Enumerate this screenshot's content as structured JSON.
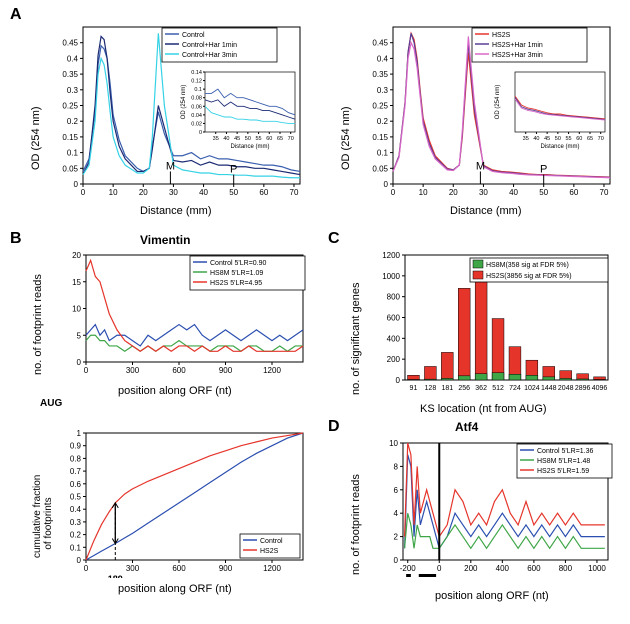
{
  "labels": {
    "A": "A",
    "B": "B",
    "C": "C",
    "D": "D",
    "AUG": "AUG"
  },
  "panelA_left": {
    "type": "line",
    "xlabel": "Distance (mm)",
    "ylabel": "OD (254 nm)",
    "xlim": [
      0,
      72
    ],
    "ylim": [
      0,
      0.5
    ],
    "xticks": [
      0,
      10,
      20,
      30,
      40,
      50,
      60,
      70
    ],
    "yticks": [
      0,
      0.05,
      0.1,
      0.15,
      0.2,
      0.25,
      0.3,
      0.35,
      0.4,
      0.45
    ],
    "M_label": "M",
    "P_label": "P",
    "M_pos": 29,
    "P_pos": 50,
    "series": [
      {
        "name": "Control",
        "color": "#3a5fae",
        "x": [
          0,
          2,
          4,
          5,
          6,
          7,
          8,
          9,
          10,
          12,
          14,
          18,
          20,
          22,
          23,
          25,
          27,
          30,
          33,
          36,
          39,
          42,
          45,
          48,
          51,
          54,
          57,
          60,
          63,
          66,
          69,
          72
        ],
        "y": [
          0.04,
          0.08,
          0.23,
          0.38,
          0.44,
          0.43,
          0.4,
          0.32,
          0.22,
          0.14,
          0.09,
          0.05,
          0.04,
          0.05,
          0.12,
          0.23,
          0.16,
          0.09,
          0.09,
          0.1,
          0.08,
          0.09,
          0.08,
          0.08,
          0.075,
          0.07,
          0.065,
          0.06,
          0.06,
          0.055,
          0.045,
          0.04
        ]
      },
      {
        "name": "Control+Har 1min",
        "color": "#1b2a73",
        "x": [
          0,
          2,
          4,
          5,
          6,
          7,
          8,
          9,
          10,
          12,
          14,
          18,
          20,
          22,
          23,
          25,
          27,
          30,
          33,
          36,
          39,
          42,
          45,
          48,
          51,
          54,
          57,
          60,
          63,
          66,
          69,
          72
        ],
        "y": [
          0.03,
          0.07,
          0.25,
          0.41,
          0.47,
          0.46,
          0.4,
          0.29,
          0.2,
          0.12,
          0.08,
          0.04,
          0.04,
          0.05,
          0.11,
          0.25,
          0.18,
          0.075,
          0.07,
          0.075,
          0.06,
          0.07,
          0.06,
          0.06,
          0.055,
          0.055,
          0.05,
          0.05,
          0.045,
          0.04,
          0.035,
          0.03
        ]
      },
      {
        "name": "Control+Har 3min",
        "color": "#35d2e6",
        "x": [
          0,
          2,
          4,
          5,
          6,
          7,
          8,
          9,
          10,
          12,
          14,
          18,
          20,
          22,
          23,
          25,
          27,
          30,
          33,
          36,
          39,
          42,
          45,
          48,
          51,
          54,
          57,
          60,
          63,
          66,
          69,
          72
        ],
        "y": [
          0.03,
          0.06,
          0.2,
          0.35,
          0.4,
          0.38,
          0.32,
          0.23,
          0.15,
          0.09,
          0.06,
          0.035,
          0.035,
          0.05,
          0.15,
          0.48,
          0.25,
          0.06,
          0.045,
          0.04,
          0.035,
          0.035,
          0.03,
          0.03,
          0.028,
          0.028,
          0.025,
          0.025,
          0.025,
          0.022,
          0.02,
          0.02
        ]
      }
    ],
    "inset": {
      "xlim": [
        30,
        72
      ],
      "ylim": [
        0,
        0.14
      ],
      "xticks": [
        35,
        40,
        45,
        50,
        55,
        60,
        65,
        70
      ],
      "yticks": [
        0,
        0.02,
        0.04,
        0.06,
        0.08,
        0.1,
        0.12,
        0.14
      ]
    }
  },
  "panelA_right": {
    "type": "line",
    "xlabel": "Distance (mm)",
    "ylabel": "OD (254 nm)",
    "xlim": [
      0,
      72
    ],
    "ylim": [
      0,
      0.5
    ],
    "xticks": [
      0,
      10,
      20,
      30,
      40,
      50,
      60,
      70
    ],
    "yticks": [
      0,
      0.05,
      0.1,
      0.15,
      0.2,
      0.25,
      0.3,
      0.35,
      0.4,
      0.45
    ],
    "M_label": "M",
    "P_label": "P",
    "M_pos": 29,
    "P_pos": 50,
    "series": [
      {
        "name": "HS2S",
        "color": "#e5352b",
        "x": [
          0,
          2,
          4,
          5,
          6,
          7,
          8,
          9,
          10,
          12,
          14,
          18,
          20,
          22,
          23,
          25,
          27,
          30,
          33,
          36,
          39,
          42,
          45,
          48,
          51,
          54,
          57,
          60,
          63,
          66,
          69,
          72
        ],
        "y": [
          0.04,
          0.09,
          0.26,
          0.42,
          0.48,
          0.46,
          0.4,
          0.3,
          0.21,
          0.14,
          0.09,
          0.05,
          0.045,
          0.06,
          0.15,
          0.42,
          0.22,
          0.06,
          0.045,
          0.04,
          0.038,
          0.035,
          0.032,
          0.03,
          0.03,
          0.028,
          0.027,
          0.026,
          0.025,
          0.024,
          0.023,
          0.022
        ]
      },
      {
        "name": "HS2S+Har 1min",
        "color": "#5a3f96",
        "x": [
          0,
          2,
          4,
          5,
          6,
          7,
          8,
          9,
          10,
          12,
          14,
          18,
          20,
          22,
          23,
          25,
          27,
          30,
          33,
          36,
          39,
          42,
          45,
          48,
          51,
          54,
          57,
          60,
          63,
          66,
          69,
          72
        ],
        "y": [
          0.04,
          0.09,
          0.26,
          0.42,
          0.48,
          0.45,
          0.39,
          0.29,
          0.2,
          0.13,
          0.085,
          0.048,
          0.045,
          0.06,
          0.16,
          0.45,
          0.24,
          0.058,
          0.042,
          0.038,
          0.036,
          0.033,
          0.03,
          0.029,
          0.028,
          0.027,
          0.026,
          0.025,
          0.024,
          0.023,
          0.022,
          0.021
        ]
      },
      {
        "name": "HS2S+Har 3min",
        "color": "#d967c8",
        "x": [
          0,
          2,
          4,
          5,
          6,
          7,
          8,
          9,
          10,
          12,
          14,
          18,
          20,
          22,
          23,
          25,
          27,
          30,
          33,
          36,
          39,
          42,
          45,
          48,
          51,
          54,
          57,
          60,
          63,
          66,
          69,
          72
        ],
        "y": [
          0.04,
          0.085,
          0.25,
          0.4,
          0.45,
          0.43,
          0.37,
          0.28,
          0.19,
          0.12,
          0.08,
          0.045,
          0.043,
          0.06,
          0.17,
          0.47,
          0.26,
          0.055,
          0.04,
          0.036,
          0.034,
          0.031,
          0.029,
          0.028,
          0.027,
          0.026,
          0.025,
          0.024,
          0.023,
          0.022,
          0.021,
          0.02
        ]
      }
    ],
    "inset": {
      "xlim": [
        30,
        72
      ],
      "ylim": [
        0,
        0.1
      ],
      "xticks": [
        35,
        40,
        45,
        50,
        55,
        60,
        65,
        70
      ]
    }
  },
  "panelB_top": {
    "type": "line",
    "title": "Vimentin",
    "xlabel": "position along ORF (nt)",
    "ylabel": "no. of footprint reads",
    "xlim": [
      0,
      1400
    ],
    "ylim": [
      0,
      20
    ],
    "xticks": [
      0,
      300,
      600,
      900,
      1200
    ],
    "yticks": [
      0,
      5,
      10,
      15,
      20
    ],
    "legend_title": "",
    "series": [
      {
        "name": "Control  5'LR=0.90",
        "color": "#2b4fb0",
        "x": [
          0,
          30,
          60,
          90,
          120,
          150,
          200,
          250,
          300,
          350,
          400,
          450,
          500,
          550,
          600,
          650,
          700,
          750,
          800,
          850,
          900,
          950,
          1000,
          1050,
          1100,
          1150,
          1200,
          1250,
          1300,
          1350,
          1400
        ],
        "y": [
          5,
          6,
          7,
          5,
          6,
          4,
          5,
          5,
          4,
          3,
          5,
          4,
          5,
          6,
          7,
          6,
          7,
          5,
          4,
          5,
          6,
          5,
          4,
          5,
          6,
          5,
          4,
          5,
          4,
          5,
          6
        ]
      },
      {
        "name": "HS8M    5'LR=1.09",
        "color": "#3fa648",
        "x": [
          0,
          30,
          60,
          90,
          120,
          150,
          200,
          250,
          300,
          350,
          400,
          450,
          500,
          550,
          600,
          650,
          700,
          750,
          800,
          850,
          900,
          950,
          1000,
          1050,
          1100,
          1150,
          1200,
          1250,
          1300,
          1350,
          1400
        ],
        "y": [
          4,
          5,
          5,
          4,
          4,
          3,
          3,
          2,
          3,
          2,
          3,
          2,
          3,
          3,
          4,
          3,
          3,
          3,
          2,
          3,
          3,
          3,
          2,
          3,
          3,
          2,
          2,
          3,
          2,
          3,
          3
        ]
      },
      {
        "name": "HS2S    5'LR=4.95",
        "color": "#e5352b",
        "x": [
          0,
          30,
          60,
          90,
          120,
          150,
          200,
          250,
          300,
          350,
          400,
          450,
          500,
          550,
          600,
          650,
          700,
          750,
          800,
          850,
          900,
          950,
          1000,
          1050,
          1100,
          1150,
          1200,
          1250,
          1300,
          1350,
          1400
        ],
        "y": [
          17,
          19,
          16,
          15,
          12,
          9,
          6,
          4,
          3,
          2,
          3,
          2,
          3,
          2,
          3,
          3,
          2,
          3,
          2,
          2,
          3,
          2,
          2,
          3,
          2,
          2,
          2,
          2,
          2,
          2,
          3
        ]
      }
    ]
  },
  "panelB_bottom": {
    "type": "line",
    "xlabel": "position along ORF (nt)",
    "ylabel": "cumulative fraction\nof footprints",
    "xlim": [
      0,
      1400
    ],
    "ylim": [
      0,
      1.0
    ],
    "xticks": [
      0,
      300,
      600,
      900,
      1200
    ],
    "yticks": [
      0,
      0.1,
      0.2,
      0.3,
      0.4,
      0.5,
      0.6,
      0.7,
      0.8,
      0.9,
      1.0
    ],
    "ks_mark": 189,
    "ks_label": "189",
    "series": [
      {
        "name": "Control",
        "color": "#2b4fb0",
        "x": [
          0,
          100,
          189,
          300,
          400,
          500,
          600,
          700,
          800,
          900,
          1000,
          1100,
          1200,
          1300,
          1400
        ],
        "y": [
          0,
          0.07,
          0.13,
          0.21,
          0.29,
          0.37,
          0.45,
          0.53,
          0.61,
          0.69,
          0.77,
          0.84,
          0.9,
          0.96,
          1.0
        ]
      },
      {
        "name": "HS2S",
        "color": "#e5352b",
        "x": [
          0,
          50,
          100,
          150,
          189,
          250,
          300,
          400,
          500,
          600,
          700,
          800,
          900,
          1000,
          1100,
          1200,
          1300,
          1400
        ],
        "y": [
          0,
          0.15,
          0.28,
          0.38,
          0.45,
          0.52,
          0.56,
          0.62,
          0.67,
          0.72,
          0.77,
          0.82,
          0.86,
          0.9,
          0.93,
          0.96,
          0.98,
          1.0
        ]
      }
    ]
  },
  "panelC": {
    "type": "bar",
    "xlabel": "KS location (nt from AUG)",
    "ylabel": "no. of significant genes",
    "categories": [
      "91",
      "128",
      "181",
      "256",
      "362",
      "512",
      "724",
      "1024",
      "1448",
      "2048",
      "2896",
      "4096"
    ],
    "ylim": [
      0,
      1200
    ],
    "yticks": [
      0,
      200,
      400,
      600,
      800,
      1000,
      1200
    ],
    "legend": [
      {
        "name": "HS8M(358 sig at FDR 5%)",
        "color": "#3fa648"
      },
      {
        "name": "HS2S(3856 sig at FDR 5%)",
        "color": "#e5352b"
      }
    ],
    "hs8m": [
      5,
      8,
      15,
      40,
      60,
      70,
      55,
      45,
      30,
      15,
      10,
      5
    ],
    "hs2s": [
      45,
      130,
      265,
      880,
      1120,
      590,
      320,
      190,
      130,
      90,
      60,
      30
    ]
  },
  "panelD": {
    "type": "line",
    "title": "Atf4",
    "xlabel": "position along ORF (nt)",
    "ylabel": "no. of footprint reads",
    "xlim": [
      -230,
      1070
    ],
    "ylim": [
      0,
      10
    ],
    "xticks": [
      -200,
      0,
      200,
      400,
      600,
      800,
      1000
    ],
    "yticks": [
      0,
      2,
      4,
      6,
      8,
      10
    ],
    "uorf1_label": "uORF1",
    "uorf2_label": "uORF2",
    "uorf1_range": [
      -210,
      -180
    ],
    "uorf2_range": [
      -130,
      -20
    ],
    "series": [
      {
        "name": "Control 5'LR=1.36",
        "color": "#2b4fb0",
        "x": [
          -220,
          -200,
          -180,
          -160,
          -140,
          -120,
          -100,
          -80,
          -60,
          -40,
          -20,
          0,
          50,
          100,
          150,
          200,
          250,
          300,
          350,
          400,
          450,
          500,
          550,
          600,
          650,
          700,
          750,
          800,
          850,
          900,
          950,
          1000,
          1050
        ],
        "y": [
          1,
          9,
          8,
          2,
          6,
          3,
          4,
          5,
          4,
          3,
          2,
          1,
          2,
          4,
          3,
          2,
          3,
          2,
          3,
          4,
          3,
          2,
          3,
          2,
          3,
          2,
          3,
          2,
          3,
          2,
          2,
          2,
          2
        ]
      },
      {
        "name": "HS8M   5'LR=1.48",
        "color": "#3fa648",
        "x": [
          -220,
          -200,
          -180,
          -160,
          -140,
          -120,
          -100,
          -80,
          -60,
          -40,
          -20,
          0,
          50,
          100,
          150,
          200,
          250,
          300,
          350,
          400,
          450,
          500,
          550,
          600,
          650,
          700,
          750,
          800,
          850,
          900,
          950,
          1000,
          1050
        ],
        "y": [
          1,
          4,
          3,
          1,
          3,
          2,
          2,
          2,
          2,
          1,
          1,
          1,
          2,
          3,
          2,
          1,
          2,
          1,
          2,
          3,
          2,
          1,
          2,
          1,
          2,
          1,
          2,
          1,
          2,
          1,
          1,
          1,
          1
        ]
      },
      {
        "name": "HS2S   5'LR=1.59",
        "color": "#e5352b",
        "x": [
          -220,
          -200,
          -180,
          -160,
          -140,
          -120,
          -100,
          -80,
          -60,
          -40,
          -20,
          0,
          50,
          100,
          150,
          200,
          250,
          300,
          350,
          400,
          450,
          500,
          550,
          600,
          650,
          700,
          750,
          800,
          850,
          900,
          950,
          1000,
          1050
        ],
        "y": [
          2,
          10,
          9,
          3,
          8,
          4,
          5,
          6,
          5,
          4,
          3,
          2,
          3,
          6,
          5,
          3,
          4,
          3,
          5,
          6,
          4,
          3,
          5,
          3,
          4,
          3,
          4,
          3,
          4,
          3,
          3,
          3,
          3
        ]
      }
    ]
  }
}
